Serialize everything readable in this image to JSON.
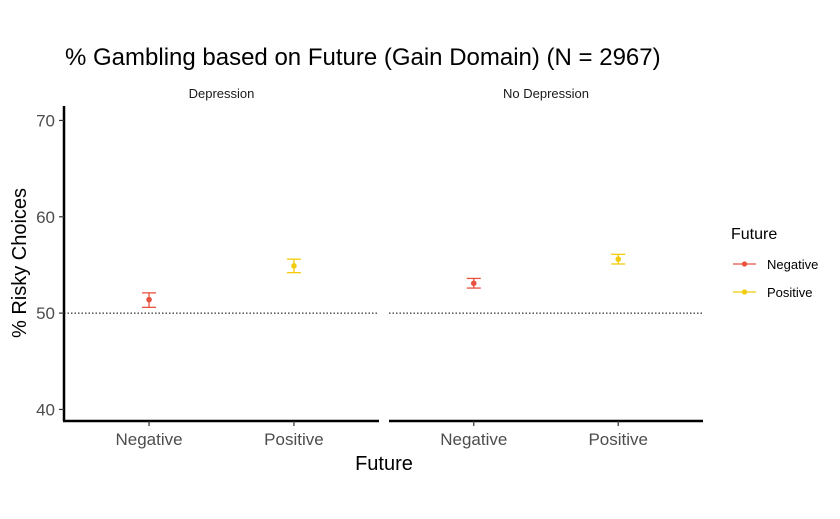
{
  "chart_data": {
    "type": "scatter",
    "title": "% Gambling based on Future (Gain Domain) (N = 2967)",
    "xlabel": "Future",
    "ylabel": "% Risky Choices",
    "ylim": [
      38.8,
      71.5
    ],
    "yticks": [
      40,
      50,
      60,
      70
    ],
    "reference_line": 50,
    "categories": [
      "Negative",
      "Positive"
    ],
    "facets": [
      {
        "label": "Depression",
        "points": [
          {
            "category": "Negative",
            "value": 51.4,
            "lower": 50.6,
            "upper": 52.1
          },
          {
            "category": "Positive",
            "value": 54.9,
            "lower": 54.2,
            "upper": 55.6
          }
        ]
      },
      {
        "label": "No Depression",
        "points": [
          {
            "category": "Negative",
            "value": 53.1,
            "lower": 52.6,
            "upper": 53.6
          },
          {
            "category": "Positive",
            "value": 55.6,
            "lower": 55.1,
            "upper": 56.1
          }
        ]
      }
    ],
    "legend": {
      "title": "Future",
      "position": "right",
      "entries": [
        {
          "label": "Negative",
          "color": "#E8533F"
        },
        {
          "label": "Positive",
          "color": "#F2CC0C"
        }
      ]
    },
    "grid": false
  }
}
